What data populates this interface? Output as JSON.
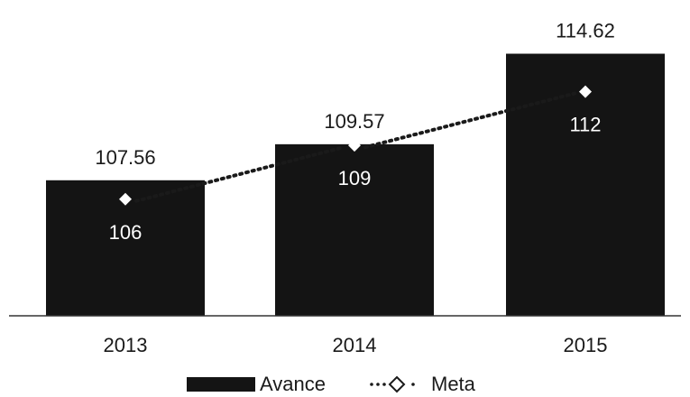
{
  "chart_data": {
    "type": "bar",
    "categories": [
      "2013",
      "2014",
      "2015"
    ],
    "series": [
      {
        "name": "Avance",
        "type": "bar",
        "values": [
          107.56,
          109.57,
          114.62
        ],
        "labels": [
          "107.56",
          "109.57",
          "114.62"
        ]
      },
      {
        "name": "Meta",
        "type": "line",
        "style": "dotted-diamond",
        "values": [
          106,
          109,
          112
        ],
        "labels": [
          "106",
          "109",
          "112"
        ]
      }
    ],
    "legend": [
      "Avance",
      "Meta"
    ],
    "legend_position": "bottom",
    "grid": false,
    "colors": {
      "bar": "#141414",
      "line": "#1a1a1a",
      "marker": "#ffffff"
    }
  }
}
